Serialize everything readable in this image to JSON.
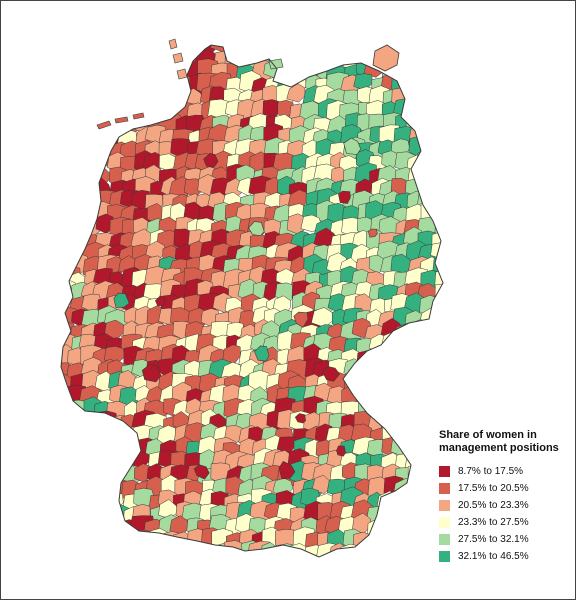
{
  "legend": {
    "title_line1": "Share of women in",
    "title_line2": "management positions",
    "classes": [
      {
        "label": "8.7% to 17.5%",
        "color": "#b2182b"
      },
      {
        "label": "17.5% to 20.5%",
        "color": "#d6604d"
      },
      {
        "label": "20.5% to 23.3%",
        "color": "#f4a582"
      },
      {
        "label": "23.3% to 27.5%",
        "color": "#ffffcc"
      },
      {
        "label": "27.5% to 32.1%",
        "color": "#a6dba0"
      },
      {
        "label": "32.1% to 46.5%",
        "color": "#35b07f"
      }
    ]
  },
  "map": {
    "border_color": "#3a3a3a",
    "water_color": "#ffffff"
  }
}
